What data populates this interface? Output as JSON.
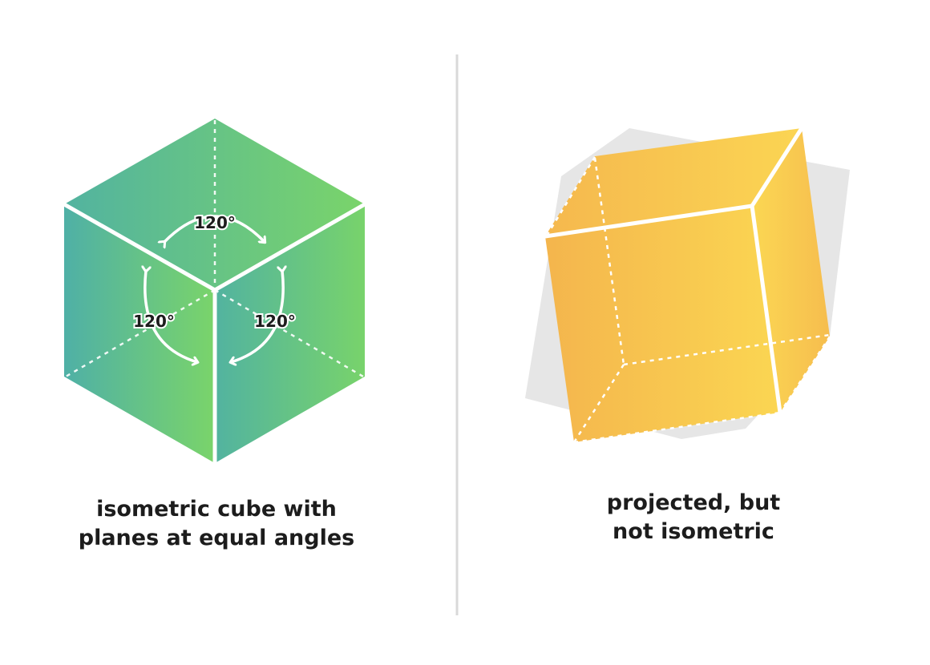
{
  "colors": {
    "green_light": "#7ad46a",
    "green_teal": "#52b3a0",
    "yellow_light": "#fad551",
    "yellow_orange": "#f4b54d",
    "shadow_gray": "#e5e5e5",
    "divider": "#d9d9d9",
    "edge_white": "#ffffff",
    "text_dark": "#1c1c1c"
  },
  "left_panel": {
    "angle_labels": {
      "top": "120°",
      "left": "120°",
      "right": "120°"
    },
    "caption": {
      "line1": "isometric cube with",
      "line2": "planes at equal angles"
    }
  },
  "right_panel": {
    "caption": {
      "line1": "projected, but",
      "line2": "not isometric"
    }
  }
}
